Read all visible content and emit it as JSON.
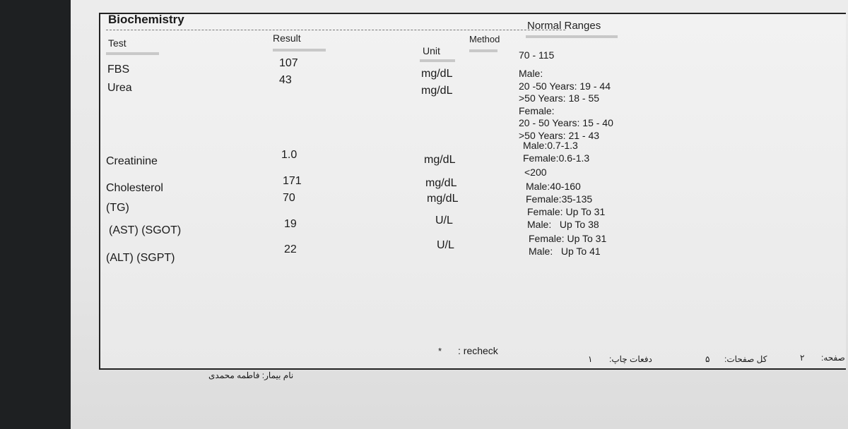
{
  "header": {
    "title": "Biochemistry"
  },
  "columns": {
    "test": "Test",
    "result": "Result",
    "unit": "Unit",
    "method": "Method",
    "ranges": "Normal Ranges"
  },
  "rows": [
    {
      "test": "FBS",
      "result": "107",
      "unit": "mg/dL",
      "ranges": [
        "70 - 115"
      ]
    },
    {
      "test": "Urea",
      "result": "43",
      "unit": "mg/dL",
      "ranges": [
        "Male:",
        "20 -50 Years: 19 - 44",
        ">50 Years: 18 - 55",
        "Female:",
        "20 - 50 Years: 15 - 40",
        ">50 Years: 21 - 43"
      ]
    },
    {
      "test": "Creatinine",
      "result": "1.0",
      "unit": "mg/dL",
      "ranges": [
        "Male:0.7-1.3",
        "Female:0.6-1.3"
      ]
    },
    {
      "test": "Cholesterol",
      "result": "171",
      "unit": "mg/dL",
      "ranges": [
        "<200"
      ]
    },
    {
      "test": "(TG)",
      "result": "70",
      "unit": "mg/dL",
      "ranges": [
        "Male:40-160",
        "Female:35-135"
      ]
    },
    {
      "test": "(AST) (SGOT)",
      "result": "19",
      "unit": "U/L",
      "ranges": [
        "Female: Up To 31",
        "Male:   Up To 38"
      ]
    },
    {
      "test": "(ALT) (SGPT)",
      "result": "22",
      "unit": "U/L",
      "ranges": [
        "Female: Up To 31",
        "Male:   Up To 41"
      ]
    }
  ],
  "footer": {
    "marker": "*",
    "note": ": recheck",
    "patient": "نام بیمار: فاطمه محمدی",
    "prints_label": "دفعات چاپ:",
    "prints": "۱",
    "pages_label": "کل صفحات:",
    "pages": "۵",
    "page_label": "صفحه:",
    "page": "۲"
  }
}
